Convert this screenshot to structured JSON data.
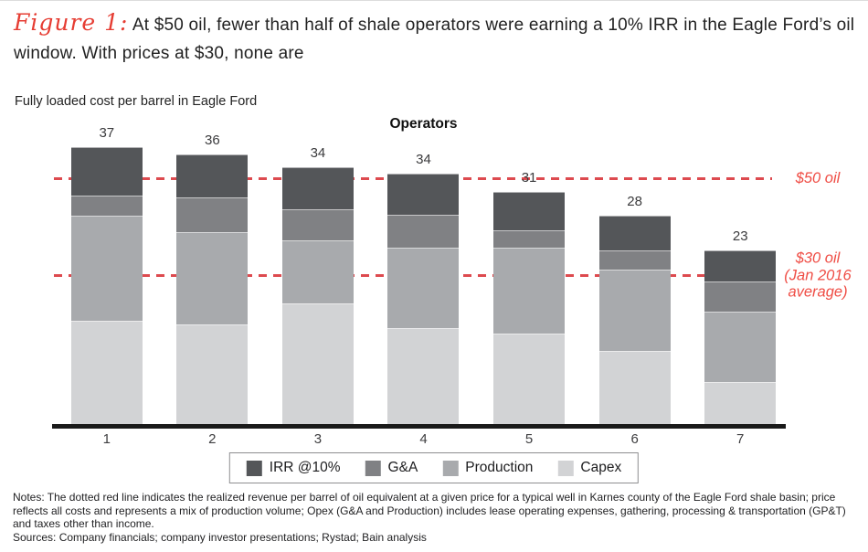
{
  "header": {
    "figure_label": "Figure 1:",
    "title_rest": " At $50 oil, fewer than half of shale operators were earning a 10% IRR in the Eagle Ford’s oil window. With prices at $30, none are"
  },
  "colors": {
    "figure_red": "#e63d33",
    "annotation_red": "#ef4d45",
    "ref_line_red": "#dd4a4f",
    "axis_black": "#1a1a1a"
  },
  "chart_data": {
    "type": "bar",
    "stacked": true,
    "title": "Operators",
    "axis_title": "Fully loaded cost per barrel in Eagle Ford",
    "categories": [
      "1",
      "2",
      "3",
      "4",
      "5",
      "6",
      "7"
    ],
    "series": [
      {
        "name": "Capex",
        "color": "#d2d3d5",
        "values": [
          14.0,
          13.4,
          16.2,
          13.0,
          12.3,
          9.9,
          5.8
        ]
      },
      {
        "name": "Production",
        "color": "#a8aaad",
        "values": [
          13.9,
          12.3,
          8.4,
          10.6,
          11.3,
          10.8,
          9.4
        ]
      },
      {
        "name": "G&A",
        "color": "#808184",
        "values": [
          2.6,
          4.6,
          4.1,
          4.4,
          2.4,
          2.6,
          4.0
        ]
      },
      {
        "name": "IRR @10%",
        "color": "#545659",
        "values": [
          6.5,
          5.7,
          5.6,
          5.5,
          5.0,
          4.6,
          4.1
        ]
      }
    ],
    "totals_labels": [
      "37",
      "36",
      "34",
      "34",
      "31",
      "28",
      "23"
    ],
    "ylim": [
      0,
      40
    ],
    "yticks": [
      {
        "value": 40,
        "label": "$40"
      },
      {
        "value": 30,
        "label": "30"
      },
      {
        "value": 20,
        "label": "20"
      },
      {
        "value": 10,
        "label": "10"
      },
      {
        "value": 0,
        "label": "0"
      }
    ],
    "ref_lines": [
      {
        "value": 32.8,
        "label_lines": [
          "$50 oil"
        ]
      },
      {
        "value": 20,
        "label_lines": [
          "$30 oil",
          "(Jan 2016",
          "average)"
        ]
      }
    ],
    "legend": [
      "IRR @10%",
      "G&A",
      "Production",
      "Capex"
    ],
    "grid": false,
    "legend_position": "bottom"
  },
  "notes": "Notes: The dotted red line indicates the realized revenue per barrel of oil equivalent at a given price for a typical well in Karnes county of the Eagle Ford shale basin; price reflects all costs and represents a mix of production volume; Opex (G&A and Production) includes lease operating expenses, gathering, processing & transportation (GP&T) and taxes other than income.",
  "sources": "Sources: Company financials; company investor presentations; Rystad; Bain analysis"
}
